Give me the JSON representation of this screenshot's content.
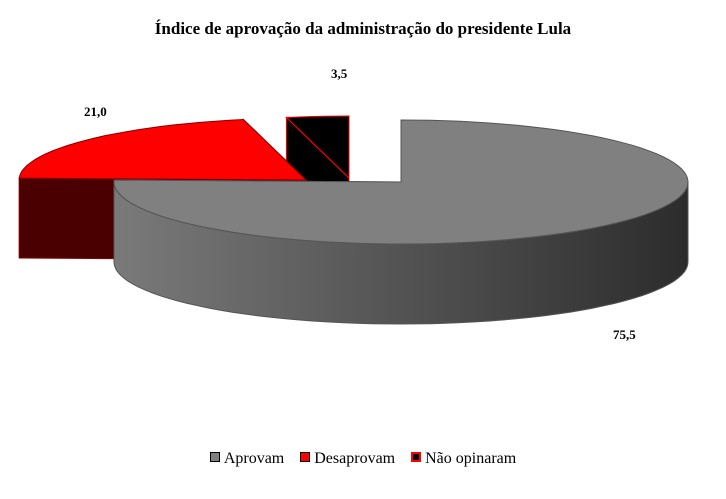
{
  "chart_data": {
    "type": "pie",
    "style": "3d-exploded",
    "title": "Índice de aprovação da administração do presidente Lula",
    "categories": [
      "Aprovam",
      "Desaprovam",
      "Não opinaram"
    ],
    "values": [
      75.5,
      21.0,
      3.5
    ],
    "data_labels": [
      "75,5",
      "21,0",
      "3,5"
    ],
    "colors": [
      "#808080",
      "#ff0000",
      "#000000"
    ],
    "legend_position": "bottom"
  }
}
